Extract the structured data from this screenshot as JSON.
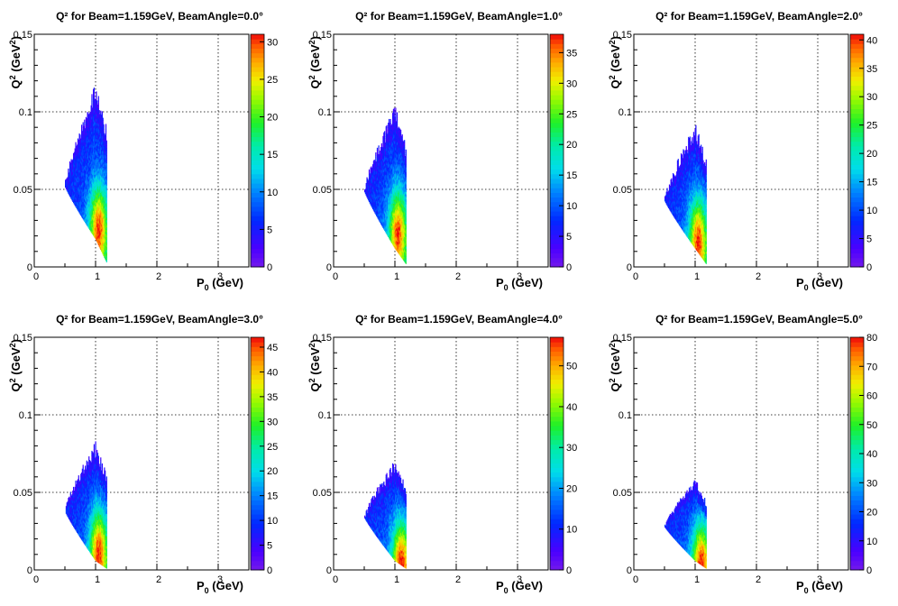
{
  "panel_titles": [
    "Q² for Beam=1.159GeV, BeamAngle=0.0°",
    "Q² for Beam=1.159GeV, BeamAngle=1.0°",
    "Q² for Beam=1.159GeV, BeamAngle=2.0°",
    "Q² for Beam=1.159GeV, BeamAngle=3.0°",
    "Q² for Beam=1.159GeV, BeamAngle=4.0°",
    "Q² for Beam=1.159GeV, BeamAngle=5.0°"
  ],
  "chart_data": [
    {
      "type": "heatmap",
      "title": "Q² for Beam=1.159GeV, BeamAngle=0.0°",
      "xlabel": "P_0 (GeV)",
      "ylabel": "Q^2 (GeV^2)",
      "xlim": [
        0,
        3.5
      ],
      "ylim": [
        0,
        0.15
      ],
      "xticks": [
        "0",
        "1",
        "2",
        "3"
      ],
      "yticks": [
        "0",
        "0.05",
        "0.1",
        "0.15"
      ],
      "grid": true,
      "z_max": 31,
      "z_ticks": [
        0,
        5,
        10,
        15,
        20,
        25,
        30
      ],
      "region": {
        "p_min": 0.5,
        "p_max": 1.18,
        "p_peak": 1.0,
        "q2_apex": 0.052,
        "q2_max": 0.113,
        "q2_min_at_pmax": 0.003
      },
      "hot_spot": {
        "p": 1.05,
        "q2": 0.025
      }
    },
    {
      "type": "heatmap",
      "title": "Q² for Beam=1.159GeV, BeamAngle=1.0°",
      "xlabel": "P_0 (GeV)",
      "ylabel": "Q^2 (GeV^2)",
      "xlim": [
        0,
        3.5
      ],
      "ylim": [
        0,
        0.15
      ],
      "xticks": [
        "0",
        "1",
        "2",
        "3"
      ],
      "yticks": [
        "0",
        "0.05",
        "0.1",
        "0.15"
      ],
      "grid": true,
      "z_max": 38,
      "z_ticks": [
        0,
        5,
        10,
        15,
        20,
        25,
        30,
        35
      ],
      "region": {
        "p_min": 0.5,
        "p_max": 1.18,
        "p_peak": 1.0,
        "q2_apex": 0.049,
        "q2_max": 0.099,
        "q2_min_at_pmax": 0.002
      },
      "hot_spot": {
        "p": 1.05,
        "q2": 0.022
      }
    },
    {
      "type": "heatmap",
      "title": "Q² for Beam=1.159GeV, BeamAngle=2.0°",
      "xlabel": "P_0 (GeV)",
      "ylabel": "Q^2 (GeV^2)",
      "xlim": [
        0,
        3.5
      ],
      "ylim": [
        0,
        0.15
      ],
      "xticks": [
        "0",
        "1",
        "2",
        "3"
      ],
      "yticks": [
        "0",
        "0.05",
        "0.1",
        "0.15"
      ],
      "grid": true,
      "z_max": 41,
      "z_ticks": [
        0,
        5,
        10,
        15,
        20,
        25,
        30,
        35,
        40
      ],
      "region": {
        "p_min": 0.5,
        "p_max": 1.18,
        "p_peak": 1.0,
        "q2_apex": 0.043,
        "q2_max": 0.088,
        "q2_min_at_pmax": 0.002
      },
      "hot_spot": {
        "p": 1.05,
        "q2": 0.017
      }
    },
    {
      "type": "heatmap",
      "title": "Q² for Beam=1.159GeV, BeamAngle=3.0°",
      "xlabel": "P_0 (GeV)",
      "ylabel": "Q^2 (GeV^2)",
      "xlim": [
        0,
        3.5
      ],
      "ylim": [
        0,
        0.15
      ],
      "xticks": [
        "0",
        "1",
        "2",
        "3"
      ],
      "yticks": [
        "0",
        "0.05",
        "0.1",
        "0.15"
      ],
      "grid": true,
      "z_max": 47,
      "z_ticks": [
        0,
        5,
        10,
        15,
        20,
        25,
        30,
        35,
        40,
        45
      ],
      "region": {
        "p_min": 0.5,
        "p_max": 1.18,
        "p_peak": 1.0,
        "q2_apex": 0.038,
        "q2_max": 0.078,
        "q2_min_at_pmax": 0.001
      },
      "hot_spot": {
        "p": 1.05,
        "q2": 0.012
      }
    },
    {
      "type": "heatmap",
      "title": "Q² for Beam=1.159GeV, BeamAngle=4.0°",
      "xlabel": "P_0 (GeV)",
      "ylabel": "Q^2 (GeV^2)",
      "xlim": [
        0,
        3.5
      ],
      "ylim": [
        0,
        0.15
      ],
      "xticks": [
        "0",
        "1",
        "2",
        "3"
      ],
      "yticks": [
        "0",
        "0.05",
        "0.1",
        "0.15"
      ],
      "grid": true,
      "z_max": 57,
      "z_ticks": [
        0,
        10,
        20,
        30,
        40,
        50
      ],
      "region": {
        "p_min": 0.5,
        "p_max": 1.18,
        "p_peak": 1.0,
        "q2_apex": 0.034,
        "q2_max": 0.067,
        "q2_min_at_pmax": 0.001
      },
      "hot_spot": {
        "p": 1.1,
        "q2": 0.005
      }
    },
    {
      "type": "heatmap",
      "title": "Q² for Beam=1.159GeV, BeamAngle=5.0°",
      "xlabel": "P_0 (GeV)",
      "ylabel": "Q^2 (GeV^2)",
      "xlim": [
        0,
        3.5
      ],
      "ylim": [
        0,
        0.15
      ],
      "xticks": [
        "0",
        "1",
        "2",
        "3"
      ],
      "yticks": [
        "0",
        "0.05",
        "0.1",
        "0.15"
      ],
      "grid": true,
      "z_max": 80,
      "z_ticks": [
        0,
        10,
        20,
        30,
        40,
        50,
        60,
        70,
        80
      ],
      "region": {
        "p_min": 0.5,
        "p_max": 1.18,
        "p_peak": 1.0,
        "q2_apex": 0.028,
        "q2_max": 0.056,
        "q2_min_at_pmax": 0.001
      },
      "hot_spot": {
        "p": 1.1,
        "q2": 0.004
      }
    }
  ]
}
